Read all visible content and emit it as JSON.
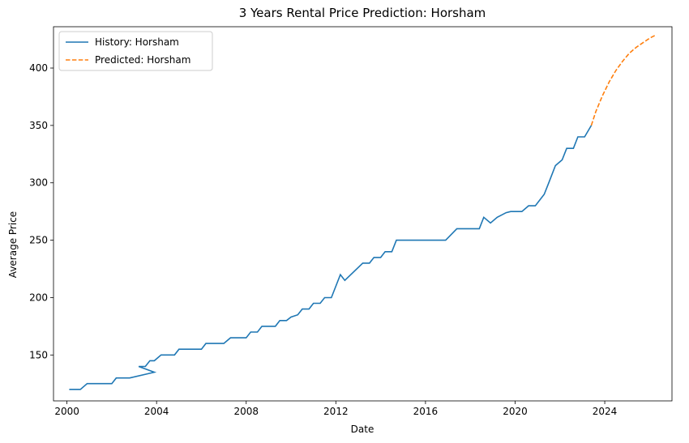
{
  "chart_data": {
    "type": "line",
    "title": "3 Years Rental Price Prediction: Horsham",
    "xlabel": "Date",
    "ylabel": "Average Price",
    "xlim": [
      1999.4,
      2027.0
    ],
    "ylim": [
      110,
      436
    ],
    "xticks": [
      2000,
      2004,
      2008,
      2012,
      2016,
      2020,
      2024
    ],
    "yticks": [
      150,
      200,
      250,
      300,
      350,
      400
    ],
    "grid": false,
    "legend_position": "top-left",
    "series": [
      {
        "name": "History: Horsham",
        "color": "#1f77b4",
        "style": "solid",
        "points": [
          [
            2000.1,
            120
          ],
          [
            2000.6,
            120
          ],
          [
            2000.9,
            125
          ],
          [
            2002.0,
            125
          ],
          [
            2002.2,
            130
          ],
          [
            2002.8,
            130
          ],
          [
            2003.9,
            135
          ],
          [
            2003.2,
            140
          ],
          [
            2003.5,
            140
          ],
          [
            2003.7,
            145
          ],
          [
            2003.9,
            145
          ],
          [
            2004.2,
            150
          ],
          [
            2004.8,
            150
          ],
          [
            2005.0,
            155
          ],
          [
            2006.0,
            155
          ],
          [
            2006.2,
            160
          ],
          [
            2007.0,
            160
          ],
          [
            2007.3,
            165
          ],
          [
            2008.0,
            165
          ],
          [
            2008.2,
            170
          ],
          [
            2008.5,
            170
          ],
          [
            2008.7,
            175
          ],
          [
            2009.3,
            175
          ],
          [
            2009.5,
            180
          ],
          [
            2009.8,
            180
          ],
          [
            2010.0,
            183
          ],
          [
            2010.3,
            185
          ],
          [
            2010.5,
            190
          ],
          [
            2010.8,
            190
          ],
          [
            2011.0,
            195
          ],
          [
            2011.3,
            195
          ],
          [
            2011.5,
            200
          ],
          [
            2011.8,
            200
          ],
          [
            2012.2,
            220
          ],
          [
            2012.4,
            215
          ],
          [
            2013.2,
            230
          ],
          [
            2013.5,
            230
          ],
          [
            2013.7,
            235
          ],
          [
            2014.0,
            235
          ],
          [
            2014.2,
            240
          ],
          [
            2014.5,
            240
          ],
          [
            2014.7,
            250
          ],
          [
            2016.9,
            250
          ],
          [
            2017.4,
            260
          ],
          [
            2018.4,
            260
          ],
          [
            2018.6,
            270
          ],
          [
            2018.9,
            265
          ],
          [
            2019.2,
            270
          ],
          [
            2019.6,
            274
          ],
          [
            2019.8,
            275
          ],
          [
            2020.3,
            275
          ],
          [
            2020.6,
            280
          ],
          [
            2020.9,
            280
          ],
          [
            2021.3,
            290
          ],
          [
            2021.5,
            300
          ],
          [
            2021.8,
            315
          ],
          [
            2022.1,
            320
          ],
          [
            2022.3,
            330
          ],
          [
            2022.6,
            330
          ],
          [
            2022.8,
            340
          ],
          [
            2023.1,
            340
          ],
          [
            2023.4,
            350
          ]
        ]
      },
      {
        "name": "Predicted: Horsham",
        "color": "#ff7f0e",
        "style": "dashed",
        "points": [
          [
            2023.4,
            350
          ],
          [
            2023.6,
            362
          ],
          [
            2023.9,
            376
          ],
          [
            2024.2,
            388
          ],
          [
            2024.5,
            398
          ],
          [
            2024.8,
            406
          ],
          [
            2025.1,
            413
          ],
          [
            2025.4,
            418
          ],
          [
            2025.7,
            422
          ],
          [
            2026.0,
            426
          ],
          [
            2026.3,
            429
          ]
        ]
      }
    ]
  }
}
